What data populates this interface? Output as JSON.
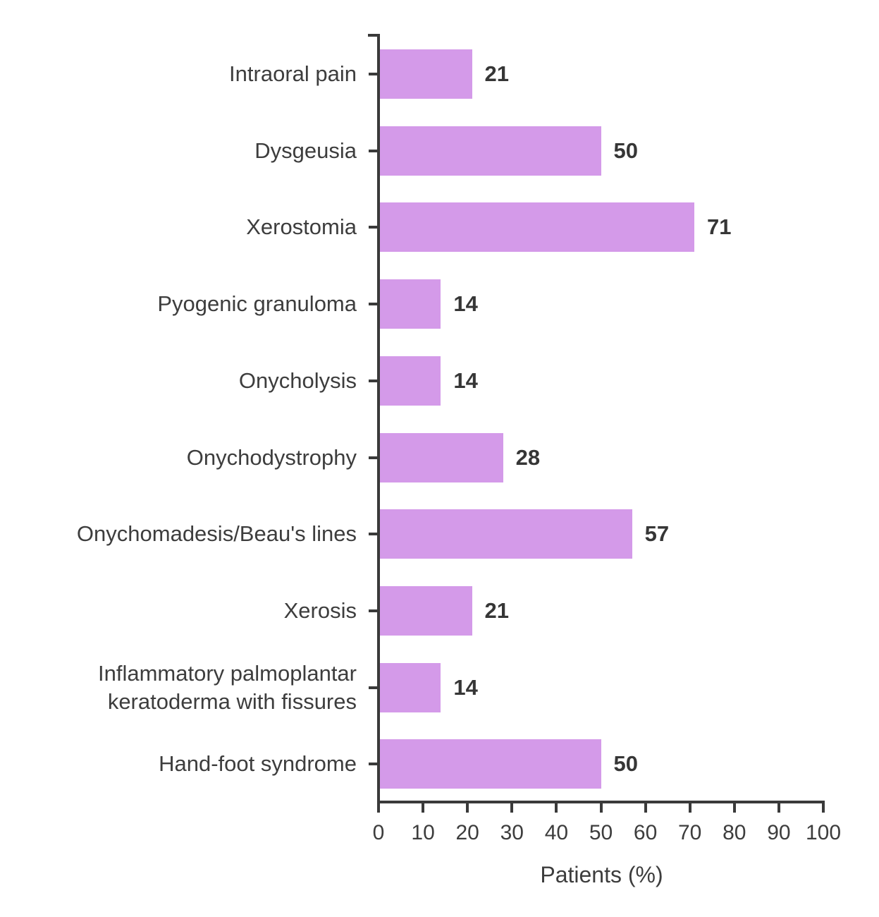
{
  "chart_data": {
    "type": "bar",
    "orientation": "horizontal",
    "categories": [
      "Intraoral pain",
      "Dysgeusia",
      "Xerostomia",
      "Pyogenic granuloma",
      "Onycholysis",
      "Onychodystrophy",
      "Onychomadesis/Beau's lines",
      "Xerosis",
      "Inflammatory palmoplantar\nkeratoderma with fissures",
      "Hand-foot syndrome"
    ],
    "values": [
      21,
      50,
      71,
      14,
      14,
      28,
      57,
      21,
      14,
      50
    ],
    "xlabel": "Patients (%)",
    "xlim": [
      0,
      100
    ],
    "xticks": [
      0,
      10,
      20,
      30,
      40,
      50,
      60,
      70,
      80,
      90,
      100
    ],
    "grid": false,
    "legend": false,
    "bar_color": "#d49ae9",
    "axis_color": "#3a3a3a",
    "label_color": "#3d3d3d",
    "value_color": "#363636"
  }
}
